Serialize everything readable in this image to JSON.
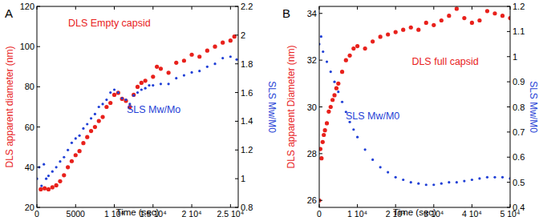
{
  "chart_data": [
    {
      "type": "scatter",
      "title": "A",
      "x_label": "Time (sec)",
      "y_label": "DLS apparent diameter (nm)",
      "y2_label": "SLS Mw/M0",
      "grid": false,
      "xlim": [
        0,
        26000
      ],
      "xticks": [
        0,
        5000,
        {
          "value": 10000,
          "label": "1 10⁴"
        },
        {
          "value": 15000,
          "label": "1.5 10⁴"
        },
        {
          "value": 20000,
          "label": "2 10⁴"
        },
        {
          "value": 25000,
          "label": "2.5 10⁴"
        }
      ],
      "ylim": [
        20,
        120
      ],
      "yticks": [
        20,
        40,
        60,
        80,
        100,
        120
      ],
      "y2lim": [
        0.8,
        2.2
      ],
      "y2ticks": [
        0.8,
        1,
        1.2,
        1.4,
        1.6,
        1.8,
        2,
        2.2
      ],
      "series": [
        {
          "name": "DLS Empty capsid",
          "color": "#e8211c",
          "marker": "circle",
          "x": [
            500,
            1000,
            1500,
            2000,
            2500,
            3000,
            3500,
            4000,
            4500,
            5000,
            5500,
            6000,
            6500,
            7000,
            7500,
            8000,
            8500,
            9000,
            9500,
            10000,
            10500,
            11000,
            11500,
            12000,
            12500,
            13000,
            13500,
            14000,
            15000,
            15500,
            16000,
            17000,
            18000,
            19000,
            20000,
            21000,
            22000,
            23000,
            24000,
            25000,
            25500
          ],
          "values": [
            29,
            29.5,
            29,
            30,
            31,
            33,
            36,
            40,
            43,
            46,
            48,
            52,
            55,
            58,
            60,
            63,
            65,
            70,
            72,
            76,
            77,
            74,
            73,
            70,
            76,
            80,
            82,
            83,
            85,
            90,
            89,
            87,
            92,
            93,
            96,
            95,
            98,
            100,
            102,
            103,
            105
          ]
        },
        {
          "name": "SLS Mw/Mo",
          "color": "#1f3fd6",
          "marker": "dot",
          "axis": "y2",
          "x": [
            0,
            300,
            600,
            900,
            1200,
            1500,
            2000,
            2500,
            3000,
            3500,
            4000,
            4500,
            5000,
            5500,
            6000,
            6500,
            7000,
            7500,
            8000,
            8500,
            9000,
            9500,
            10000,
            10500,
            11000,
            11500,
            12000,
            12500,
            13000,
            13500,
            14000,
            14500,
            15000,
            16000,
            17000,
            18000,
            19000,
            20000,
            21000,
            22000,
            23000,
            24000,
            25000,
            25800
          ],
          "values": [
            1.0,
            1.08,
            0.95,
            1.1,
            1.0,
            1.02,
            1.05,
            1.08,
            1.12,
            1.15,
            1.2,
            1.25,
            1.28,
            1.3,
            1.35,
            1.38,
            1.42,
            1.45,
            1.5,
            1.52,
            1.55,
            1.6,
            1.62,
            1.6,
            1.56,
            1.55,
            1.52,
            1.58,
            1.6,
            1.62,
            1.63,
            1.65,
            1.65,
            1.66,
            1.66,
            1.7,
            1.72,
            1.74,
            1.75,
            1.78,
            1.8,
            1.84,
            1.85,
            1.83
          ]
        }
      ]
    },
    {
      "type": "scatter",
      "title": "B",
      "x_label": "Time (sec)",
      "y_label": "DLS apparent Diameter (nm)",
      "y2_label": "SLS Mw/M0",
      "grid": false,
      "xlim": [
        0,
        50000
      ],
      "xticks": [
        0,
        {
          "value": 10000,
          "label": "1 10⁴"
        },
        {
          "value": 20000,
          "label": "2 10⁴"
        },
        {
          "value": 30000,
          "label": "3 10⁴"
        },
        {
          "value": 40000,
          "label": "4 10⁴"
        },
        {
          "value": 50000,
          "label": "5 10⁴"
        }
      ],
      "ylim": [
        25.7,
        34.3
      ],
      "yticks": [
        26,
        28,
        30,
        32,
        34
      ],
      "y2lim": [
        0.4,
        1.2
      ],
      "y2ticks": [
        0.4,
        0.5,
        0.6,
        0.7,
        0.8,
        0.9,
        1,
        1.1,
        1.2
      ],
      "series": [
        {
          "name": "DLS full capsid",
          "color": "#e8211c",
          "marker": "circle",
          "x": [
            0,
            300,
            600,
            900,
            1200,
            1500,
            2000,
            2500,
            3000,
            3500,
            4000,
            4500,
            5000,
            6000,
            7000,
            8000,
            9000,
            10000,
            12000,
            14000,
            16000,
            18000,
            20000,
            22000,
            24000,
            26000,
            28000,
            30000,
            32000,
            34000,
            36000,
            38000,
            40000,
            42000,
            44000,
            46000,
            48000,
            50000
          ],
          "values": [
            26,
            28.2,
            27.8,
            28.5,
            28.8,
            29,
            29.3,
            29.8,
            30,
            30.3,
            30.5,
            30.8,
            31,
            31.5,
            32,
            32.2,
            32.5,
            32.6,
            32.5,
            32.8,
            33,
            33.1,
            33.2,
            33.3,
            33.4,
            33.3,
            33.6,
            33.5,
            33.7,
            33.9,
            34.2,
            33.8,
            33.6,
            33.7,
            34.1,
            34,
            33.9,
            33.8
          ]
        },
        {
          "name": "SLS Mw/M0",
          "color": "#1f3fd6",
          "marker": "dot",
          "axis": "y2",
          "x": [
            0,
            500,
            1000,
            2000,
            3000,
            4000,
            5000,
            6000,
            7000,
            8000,
            9000,
            10000,
            12000,
            14000,
            16000,
            18000,
            20000,
            22000,
            24000,
            26000,
            28000,
            30000,
            32000,
            34000,
            36000,
            38000,
            40000,
            42000,
            44000,
            46000,
            48000,
            50000
          ],
          "values": [
            1.05,
            1.08,
            1.02,
            0.98,
            0.94,
            0.9,
            0.86,
            0.82,
            0.78,
            0.74,
            0.71,
            0.68,
            0.63,
            0.59,
            0.56,
            0.54,
            0.52,
            0.51,
            0.5,
            0.495,
            0.49,
            0.49,
            0.495,
            0.5,
            0.5,
            0.505,
            0.51,
            0.515,
            0.52,
            0.52,
            0.52,
            0.515
          ]
        }
      ]
    }
  ]
}
